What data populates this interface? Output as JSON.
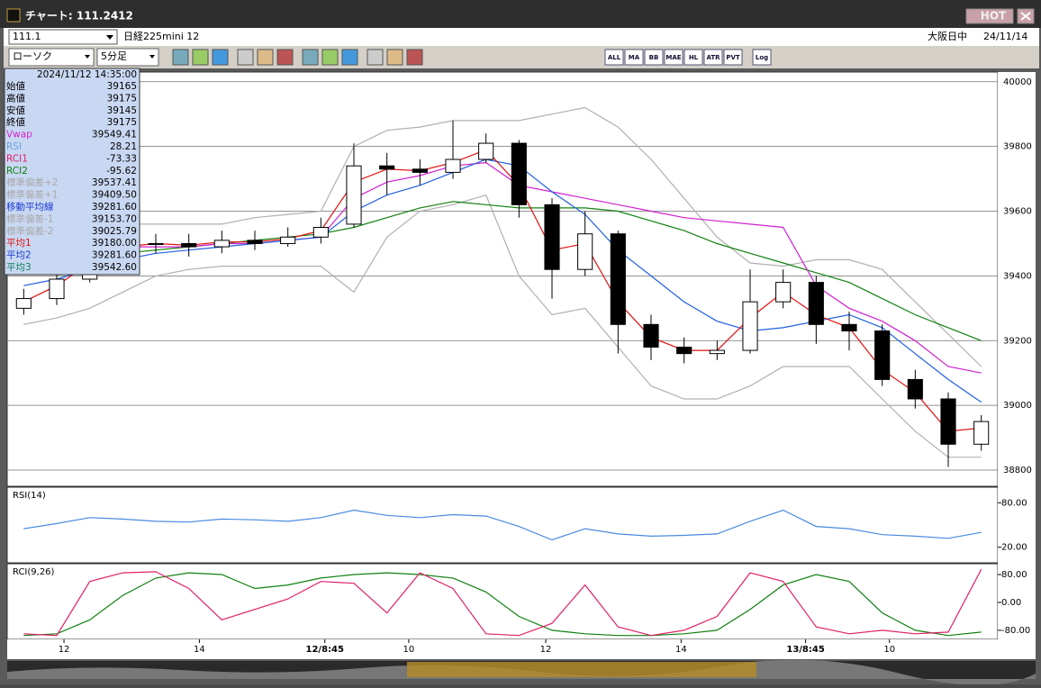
{
  "window": {
    "title": "チャート: 111.2412",
    "hot": "HOT"
  },
  "symbol_bar": {
    "code": "111.1",
    "name": "日経225mini 12",
    "session": "大阪日中",
    "date": "24/11/14"
  },
  "toolbar": {
    "chart_type": "ローソク",
    "interval": "5分足",
    "icon_labels": [
      "ALL",
      "MA",
      "BB",
      "MAE",
      "HL",
      "ATR",
      "PVT",
      "Log"
    ]
  },
  "info_box": {
    "datetime": "2024/11/12  14:35:00",
    "rows": [
      {
        "label": "始値",
        "value": "39165",
        "color": "#000000"
      },
      {
        "label": "高値",
        "value": "39175",
        "color": "#000000"
      },
      {
        "label": "安値",
        "value": "39145",
        "color": "#000000"
      },
      {
        "label": "終値",
        "value": "39175",
        "color": "#000000"
      },
      {
        "label": "Vwap",
        "value": "39549.41",
        "color": "#d020d0"
      },
      {
        "label": "RSI",
        "value": "28.21",
        "color": "#6aa0e0"
      },
      {
        "label": "RCI1",
        "value": "-73.33",
        "color": "#e0206a"
      },
      {
        "label": "RCI2",
        "value": "-95.62",
        "color": "#108010"
      },
      {
        "label": "標準偏差+2",
        "value": "39537.41",
        "color": "#a8a8a8"
      },
      {
        "label": "標準偏差+1",
        "value": "39409.50",
        "color": "#a8a8a8"
      },
      {
        "label": "移動平均線",
        "value": "39281.60",
        "color": "#1a3ad0"
      },
      {
        "label": "標準偏差-1",
        "value": "39153.70",
        "color": "#a8a8a8"
      },
      {
        "label": "標準偏差-2",
        "value": "39025.79",
        "color": "#a8a8a8"
      },
      {
        "label": "平均1",
        "value": "39180.00",
        "color": "#e01010"
      },
      {
        "label": "平均2",
        "value": "39281.60",
        "color": "#1a3ad0"
      },
      {
        "label": "平均3",
        "value": "39542.60",
        "color": "#108060"
      }
    ]
  },
  "chart_data": [
    {
      "type": "candlestick",
      "xlim": [
        0,
        30
      ],
      "xticks": [
        {
          "value": 1.72,
          "label": "12"
        },
        {
          "value": 5.82,
          "label": "14"
        },
        {
          "value": 9.62,
          "label": "12/8:45"
        },
        {
          "value": 12.16,
          "label": "10"
        },
        {
          "value": 16.31,
          "label": "12"
        },
        {
          "value": 20.41,
          "label": "14"
        },
        {
          "value": 24.18,
          "label": "13/8:45"
        },
        {
          "value": 26.72,
          "label": "10"
        }
      ],
      "ylim": [
        38750,
        40030
      ],
      "yticks": [
        38800,
        39000,
        39200,
        39400,
        39600,
        39800,
        40000
      ],
      "grid": true,
      "up_color": "#ffffff",
      "down_color": "#000000",
      "open": [
        39300,
        39330,
        39390,
        39470,
        39500,
        39500,
        39490,
        39510,
        39500,
        39520,
        39560,
        39740,
        39730,
        39720,
        39760,
        39810,
        39620,
        39420,
        39530,
        39250,
        39180,
        39160,
        39170,
        39320,
        39380,
        39250,
        39230,
        39080,
        39020,
        38880
      ],
      "high": [
        39360,
        39420,
        39500,
        39530,
        39530,
        39530,
        39540,
        39540,
        39550,
        39580,
        39810,
        39780,
        39760,
        39880,
        39840,
        39820,
        39640,
        39600,
        39540,
        39280,
        39210,
        39200,
        39420,
        39420,
        39400,
        39290,
        39250,
        39110,
        39040,
        38970
      ],
      "low": [
        39280,
        39310,
        39380,
        39450,
        39470,
        39460,
        39470,
        39480,
        39490,
        39500,
        39550,
        39650,
        39680,
        39700,
        39750,
        39580,
        39330,
        39400,
        39160,
        39140,
        39130,
        39140,
        39160,
        39300,
        39190,
        39170,
        39060,
        38990,
        38810,
        38860
      ],
      "close": [
        39330,
        39390,
        39470,
        39500,
        39500,
        39490,
        39510,
        39500,
        39520,
        39550,
        39740,
        39730,
        39720,
        39760,
        39810,
        39620,
        39420,
        39530,
        39250,
        39180,
        39160,
        39170,
        39320,
        39380,
        39250,
        39230,
        39080,
        39020,
        38880,
        38950
      ],
      "series": [
        {
          "color": "#b0b0b0",
          "values": [
            39560,
            39560,
            39560,
            39560,
            39560,
            39560,
            39560,
            39580,
            39590,
            39600,
            39800,
            39850,
            39860,
            39880,
            39880,
            39880,
            39900,
            39920,
            39860,
            39760,
            39640,
            39520,
            39440,
            39430,
            39450,
            39450,
            39420,
            39320,
            39220,
            39120
          ]
        },
        {
          "color": "#b0b0b0",
          "values": [
            39250,
            39270,
            39300,
            39350,
            39400,
            39420,
            39430,
            39430,
            39430,
            39430,
            39350,
            39520,
            39600,
            39620,
            39650,
            39400,
            39280,
            39300,
            39180,
            39060,
            39020,
            39020,
            39060,
            39120,
            39120,
            39120,
            39020,
            38920,
            38840,
            38840
          ]
        },
        {
          "color": "#108010",
          "values": [
            39440,
            39450,
            39460,
            39470,
            39480,
            39490,
            39500,
            39510,
            39520,
            39530,
            39550,
            39580,
            39610,
            39630,
            39620,
            39610,
            39610,
            39610,
            39600,
            39570,
            39540,
            39500,
            39470,
            39440,
            39410,
            39380,
            39330,
            39280,
            39240,
            39200
          ]
        },
        {
          "color": "#d020d0",
          "values": [
            39470,
            39480,
            39480,
            39490,
            39490,
            39490,
            39500,
            39500,
            39510,
            39520,
            39640,
            39690,
            39710,
            39740,
            39750,
            39680,
            39660,
            39640,
            39620,
            39600,
            39580,
            39570,
            39560,
            39550,
            39370,
            39300,
            39260,
            39200,
            39120,
            39100
          ]
        },
        {
          "color": "#2060e0",
          "values": [
            39370,
            39390,
            39420,
            39450,
            39470,
            39480,
            39490,
            39500,
            39510,
            39520,
            39600,
            39650,
            39680,
            39720,
            39760,
            39740,
            39660,
            39590,
            39480,
            39400,
            39320,
            39260,
            39230,
            39240,
            39260,
            39280,
            39240,
            39160,
            39080,
            39010
          ]
        },
        {
          "color": "#e01010",
          "values": [
            39320,
            39370,
            39440,
            39490,
            39500,
            39495,
            39505,
            39505,
            39515,
            39540,
            39690,
            39730,
            39725,
            39750,
            39790,
            39680,
            39480,
            39500,
            39320,
            39210,
            39170,
            39170,
            39270,
            39350,
            39280,
            39240,
            39110,
            39040,
            38920,
            38930
          ]
        }
      ]
    },
    {
      "type": "line",
      "title": "RSI(14)",
      "ylim": [
        -1,
        101
      ],
      "yticks": [
        {
          "value": 20,
          "label": "20.00"
        },
        {
          "value": 80,
          "label": "80.00"
        }
      ],
      "series": [
        {
          "color": "#4a8ae0",
          "values": [
            45,
            52,
            60,
            58,
            55,
            54,
            58,
            57,
            55,
            60,
            70,
            63,
            60,
            64,
            62,
            48,
            30,
            45,
            38,
            35,
            36,
            38,
            55,
            70,
            48,
            45,
            37,
            35,
            32,
            40
          ]
        }
      ]
    },
    {
      "type": "line",
      "title": "RCI(9,26)",
      "ylim": [
        -106,
        111
      ],
      "yticks": [
        {
          "value": -80,
          "label": "-80.00"
        },
        {
          "value": 0,
          "label": "0.00"
        },
        {
          "value": 80,
          "label": "80.00"
        }
      ],
      "series": [
        {
          "color": "#108010",
          "values": [
            -95,
            -90,
            -50,
            20,
            70,
            85,
            80,
            40,
            50,
            70,
            80,
            85,
            80,
            70,
            30,
            -40,
            -80,
            -90,
            -95,
            -95,
            -90,
            -80,
            -20,
            50,
            80,
            60,
            -30,
            -80,
            -95,
            -85
          ]
        },
        {
          "color": "#e0206a",
          "values": [
            -90,
            -95,
            60,
            85,
            88,
            40,
            -50,
            -20,
            10,
            60,
            55,
            -30,
            85,
            40,
            -90,
            -95,
            -60,
            50,
            -70,
            -95,
            -80,
            -40,
            85,
            60,
            -70,
            -90,
            -80,
            -90,
            -85,
            95
          ]
        }
      ]
    }
  ]
}
